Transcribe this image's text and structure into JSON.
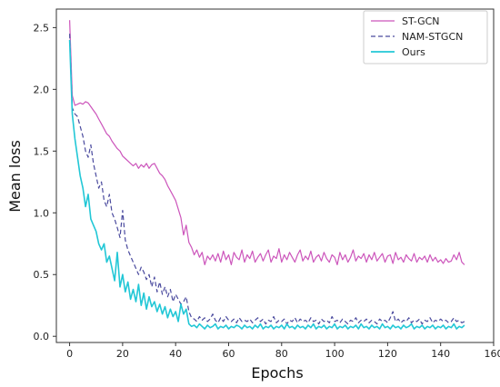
{
  "chart_data": {
    "type": "line",
    "title": "",
    "xlabel": "Epochs",
    "ylabel": "Mean loss",
    "xlim": [
      -5,
      160
    ],
    "ylim": [
      -0.05,
      2.65
    ],
    "xticks": [
      0,
      20,
      40,
      60,
      80,
      100,
      120,
      140,
      160
    ],
    "yticks": [
      0.0,
      0.5,
      1.0,
      1.5,
      2.0,
      2.5
    ],
    "ytick_labels": [
      "0.0",
      "0.5",
      "1.0",
      "1.5",
      "2.0",
      "2.5"
    ],
    "grid": false,
    "legend_position": "top-right",
    "x": [
      0,
      1,
      2,
      3,
      4,
      5,
      6,
      7,
      8,
      9,
      10,
      11,
      12,
      13,
      14,
      15,
      16,
      17,
      18,
      19,
      20,
      21,
      22,
      23,
      24,
      25,
      26,
      27,
      28,
      29,
      30,
      31,
      32,
      33,
      34,
      35,
      36,
      37,
      38,
      39,
      40,
      41,
      42,
      43,
      44,
      45,
      46,
      47,
      48,
      49,
      50,
      51,
      52,
      53,
      54,
      55,
      56,
      57,
      58,
      59,
      60,
      61,
      62,
      63,
      64,
      65,
      66,
      67,
      68,
      69,
      70,
      71,
      72,
      73,
      74,
      75,
      76,
      77,
      78,
      79,
      80,
      81,
      82,
      83,
      84,
      85,
      86,
      87,
      88,
      89,
      90,
      91,
      92,
      93,
      94,
      95,
      96,
      97,
      98,
      99,
      100,
      101,
      102,
      103,
      104,
      105,
      106,
      107,
      108,
      109,
      110,
      111,
      112,
      113,
      114,
      115,
      116,
      117,
      118,
      119,
      120,
      121,
      122,
      123,
      124,
      125,
      126,
      127,
      128,
      129,
      130,
      131,
      132,
      133,
      134,
      135,
      136,
      137,
      138,
      139,
      140,
      141,
      142,
      143,
      144,
      145,
      146,
      147,
      148,
      149
    ],
    "series": [
      {
        "name": "ST-GCN",
        "color": "#cc55bb",
        "dash": "solid",
        "values": [
          2.56,
          1.95,
          1.87,
          1.88,
          1.89,
          1.88,
          1.9,
          1.89,
          1.86,
          1.83,
          1.8,
          1.76,
          1.72,
          1.68,
          1.64,
          1.62,
          1.58,
          1.55,
          1.52,
          1.5,
          1.46,
          1.44,
          1.42,
          1.4,
          1.38,
          1.4,
          1.36,
          1.39,
          1.37,
          1.4,
          1.36,
          1.39,
          1.4,
          1.36,
          1.32,
          1.3,
          1.27,
          1.22,
          1.18,
          1.14,
          1.1,
          1.03,
          0.96,
          0.82,
          0.9,
          0.76,
          0.72,
          0.66,
          0.7,
          0.64,
          0.68,
          0.58,
          0.65,
          0.62,
          0.66,
          0.61,
          0.67,
          0.6,
          0.69,
          0.62,
          0.66,
          0.58,
          0.68,
          0.64,
          0.62,
          0.7,
          0.6,
          0.66,
          0.63,
          0.69,
          0.6,
          0.64,
          0.67,
          0.61,
          0.66,
          0.7,
          0.6,
          0.65,
          0.63,
          0.71,
          0.6,
          0.66,
          0.62,
          0.68,
          0.64,
          0.6,
          0.66,
          0.7,
          0.61,
          0.65,
          0.62,
          0.69,
          0.6,
          0.64,
          0.66,
          0.61,
          0.68,
          0.63,
          0.6,
          0.66,
          0.64,
          0.58,
          0.68,
          0.62,
          0.66,
          0.6,
          0.64,
          0.7,
          0.61,
          0.65,
          0.63,
          0.67,
          0.6,
          0.66,
          0.62,
          0.68,
          0.61,
          0.64,
          0.67,
          0.6,
          0.65,
          0.66,
          0.59,
          0.68,
          0.62,
          0.64,
          0.6,
          0.66,
          0.63,
          0.61,
          0.67,
          0.6,
          0.64,
          0.62,
          0.65,
          0.6,
          0.66,
          0.61,
          0.64,
          0.6,
          0.62,
          0.59,
          0.63,
          0.6,
          0.61,
          0.66,
          0.62,
          0.68,
          0.6,
          0.58
        ]
      },
      {
        "name": "NAM-STGCN",
        "color": "#4a4a9e",
        "dash": "dashed",
        "values": [
          2.45,
          1.85,
          1.8,
          1.78,
          1.7,
          1.62,
          1.5,
          1.45,
          1.55,
          1.4,
          1.3,
          1.2,
          1.25,
          1.1,
          1.05,
          1.15,
          1.0,
          0.95,
          0.88,
          0.8,
          1.02,
          0.78,
          0.7,
          0.65,
          0.6,
          0.55,
          0.5,
          0.56,
          0.52,
          0.46,
          0.5,
          0.4,
          0.48,
          0.36,
          0.44,
          0.34,
          0.4,
          0.32,
          0.38,
          0.28,
          0.34,
          0.3,
          0.26,
          0.28,
          0.32,
          0.2,
          0.15,
          0.14,
          0.12,
          0.16,
          0.13,
          0.15,
          0.12,
          0.14,
          0.18,
          0.13,
          0.11,
          0.15,
          0.12,
          0.16,
          0.13,
          0.12,
          0.14,
          0.11,
          0.15,
          0.12,
          0.13,
          0.12,
          0.14,
          0.11,
          0.13,
          0.15,
          0.12,
          0.14,
          0.1,
          0.13,
          0.12,
          0.16,
          0.11,
          0.13,
          0.12,
          0.14,
          0.1,
          0.13,
          0.12,
          0.15,
          0.11,
          0.14,
          0.12,
          0.13,
          0.11,
          0.15,
          0.12,
          0.13,
          0.1,
          0.14,
          0.12,
          0.13,
          0.11,
          0.16,
          0.12,
          0.13,
          0.11,
          0.14,
          0.12,
          0.1,
          0.13,
          0.12,
          0.15,
          0.11,
          0.13,
          0.12,
          0.14,
          0.11,
          0.13,
          0.12,
          0.1,
          0.14,
          0.12,
          0.13,
          0.11,
          0.15,
          0.2,
          0.12,
          0.14,
          0.11,
          0.13,
          0.12,
          0.15,
          0.11,
          0.13,
          0.12,
          0.14,
          0.1,
          0.13,
          0.12,
          0.15,
          0.11,
          0.13,
          0.12,
          0.14,
          0.12,
          0.13,
          0.11,
          0.12,
          0.15,
          0.12,
          0.13,
          0.11,
          0.12
        ]
      },
      {
        "name": "Ours",
        "color": "#22c7d6",
        "dash": "solid",
        "values": [
          2.4,
          1.8,
          1.6,
          1.45,
          1.3,
          1.2,
          1.05,
          1.15,
          0.95,
          0.9,
          0.85,
          0.75,
          0.7,
          0.75,
          0.6,
          0.65,
          0.55,
          0.45,
          0.68,
          0.4,
          0.5,
          0.36,
          0.44,
          0.3,
          0.38,
          0.28,
          0.42,
          0.25,
          0.35,
          0.22,
          0.32,
          0.24,
          0.28,
          0.2,
          0.26,
          0.18,
          0.24,
          0.15,
          0.22,
          0.16,
          0.2,
          0.12,
          0.26,
          0.18,
          0.22,
          0.1,
          0.08,
          0.09,
          0.07,
          0.1,
          0.08,
          0.06,
          0.09,
          0.07,
          0.08,
          0.1,
          0.06,
          0.08,
          0.07,
          0.09,
          0.06,
          0.08,
          0.07,
          0.09,
          0.08,
          0.06,
          0.09,
          0.07,
          0.08,
          0.06,
          0.09,
          0.07,
          0.1,
          0.06,
          0.08,
          0.07,
          0.09,
          0.06,
          0.08,
          0.07,
          0.09,
          0.06,
          0.1,
          0.07,
          0.08,
          0.06,
          0.09,
          0.07,
          0.08,
          0.06,
          0.09,
          0.07,
          0.1,
          0.06,
          0.08,
          0.07,
          0.09,
          0.06,
          0.08,
          0.07,
          0.1,
          0.06,
          0.08,
          0.07,
          0.09,
          0.06,
          0.08,
          0.07,
          0.09,
          0.06,
          0.1,
          0.07,
          0.08,
          0.06,
          0.09,
          0.07,
          0.08,
          0.06,
          0.1,
          0.07,
          0.08,
          0.06,
          0.09,
          0.07,
          0.08,
          0.06,
          0.09,
          0.07,
          0.08,
          0.1,
          0.06,
          0.08,
          0.07,
          0.09,
          0.06,
          0.08,
          0.07,
          0.09,
          0.06,
          0.08,
          0.07,
          0.09,
          0.06,
          0.08,
          0.07,
          0.1,
          0.06,
          0.08,
          0.07,
          0.09
        ]
      }
    ]
  }
}
